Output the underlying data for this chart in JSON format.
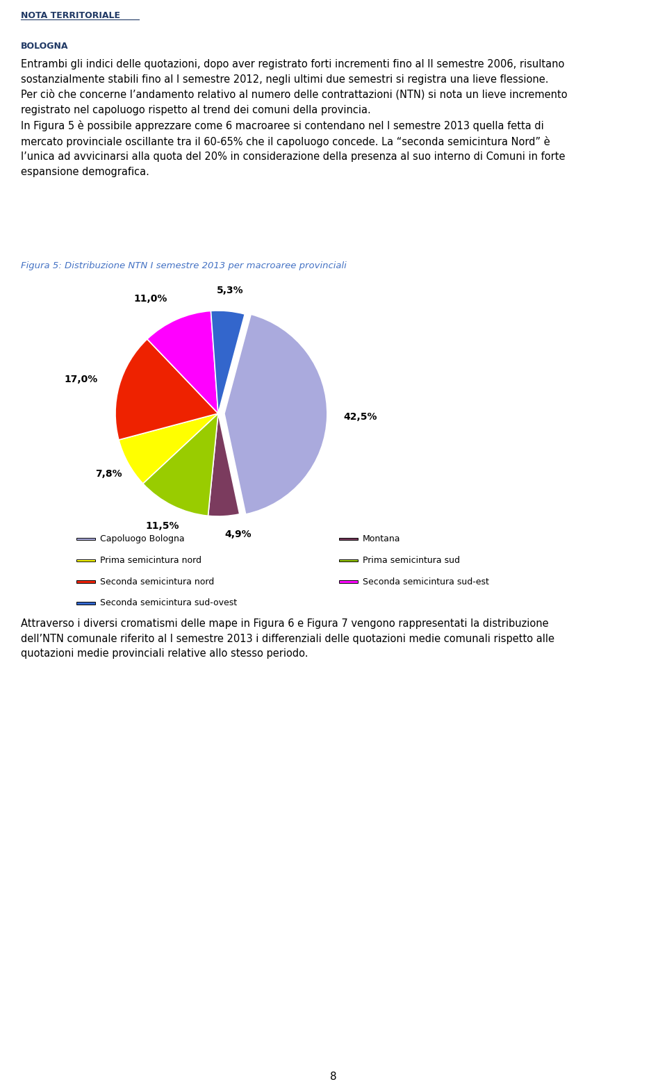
{
  "title": "Figura 5: Distribuzione NTN I semestre 2013 per macroaree provinciali",
  "slices": [
    {
      "label": "Capoluogo Bologna",
      "value": 42.5,
      "color": "#AAAADD",
      "pct_label": "42,5%"
    },
    {
      "label": "Montana",
      "value": 4.9,
      "color": "#7B3B5E",
      "pct_label": "4,9%"
    },
    {
      "label": "Prima semicintura sud",
      "value": 11.5,
      "color": "#99CC00",
      "pct_label": "11,5%"
    },
    {
      "label": "Prima semicintura nord",
      "value": 7.8,
      "color": "#FFFF00",
      "pct_label": "7,8%"
    },
    {
      "label": "Seconda semicintura nord",
      "value": 17.0,
      "color": "#EE2200",
      "pct_label": "17,0%"
    },
    {
      "label": "Seconda semicintura sud-est",
      "value": 11.0,
      "color": "#FF00FF",
      "pct_label": "11,0%"
    },
    {
      "label": "Seconda semicintura sud-ovest",
      "value": 5.3,
      "color": "#3366CC",
      "pct_label": "5,3%"
    }
  ],
  "explode_index": 0,
  "explode_amount": 0.06,
  "legend_col1": [
    {
      "label": "Capoluogo Bologna",
      "color": "#AAAADD"
    },
    {
      "label": "Prima semicintura nord",
      "color": "#FFFF00"
    },
    {
      "label": "Seconda semicintura nord",
      "color": "#EE2200"
    },
    {
      "label": "Seconda semicintura sud-ovest",
      "color": "#3366CC"
    }
  ],
  "legend_col2": [
    {
      "label": "Montana",
      "color": "#7B3B5E"
    },
    {
      "label": "Prima semicintura sud",
      "color": "#99CC00"
    },
    {
      "label": "Seconda semicintura sud-est",
      "color": "#FF00FF"
    }
  ],
  "header_text_line1": "Entrambi gli indici delle quotazioni, dopo aver registrato forti incrementi fino al II semestre 2006, risultano",
  "header_text_line2": "sostanzialmente stabili fino al I semestre 2012, negli ultimi due semestri si registra una lieve flessione.",
  "header_text_line3": "Per ciò che concerne l’andamento relativo al numero delle contrattazioni (NTN) si nota un lieve incremento",
  "header_text_line4": "registrato nel capoluogo rispetto al trend dei comuni della provincia.",
  "header_text_line5": "In Figura 5 è possibile apprezzare come 6 macroaree si contendano nel I semestre 2013 quella fetta di",
  "header_text_line6": "mercato provinciale oscillante tra il 60-65% che il capoluogo concede. La “seconda semicintura Nord” è",
  "header_text_line7": "l’unica ad avvicinarsi alla quota del 20% in considerazione della presenza al suo interno di Comuni in forte",
  "header_text_line8": "espansione demografica.",
  "bottom_text_line1": "Attraverso i diversi cromatismi delle mape in Figura 6 e Figura 7 vengono rappresentati la distribuzione",
  "bottom_text_line2": "dell’NTN comunale riferito al I semestre 2013 i differenziali delle quotazioni medie comunali rispetto alle",
  "bottom_text_line3": "quotazioni medie provinciali relative allo stesso periodo.",
  "nota_line1": "NOTA TERRITORIALE",
  "nota_line2": "BOLOGNA",
  "page_number": "8",
  "background_color": "#FFFFFF",
  "text_color": "#000000",
  "title_color": "#4472C4",
  "header_color": "#003366",
  "pct_fontsize": 10,
  "legend_fontsize": 9,
  "body_fontsize": 10.5
}
